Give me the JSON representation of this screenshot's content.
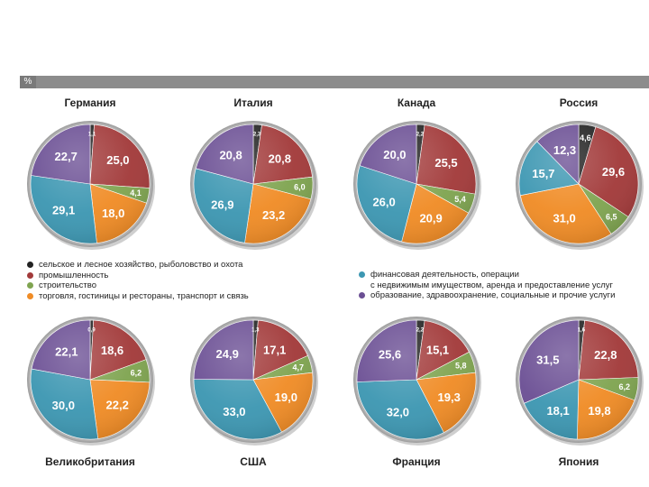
{
  "header": {
    "unit": "%"
  },
  "colors": {
    "agriculture": "#222222",
    "industry": "#a23a3a",
    "construction": "#7fa450",
    "trade": "#f08c26",
    "finance": "#3d97b2",
    "services": "#6b4f94"
  },
  "legend": {
    "left": [
      {
        "key": "agriculture",
        "label": "сельское и лесное хозяйство, рыболовство и охота"
      },
      {
        "key": "industry",
        "label": "промышленность"
      },
      {
        "key": "construction",
        "label": "строительство"
      },
      {
        "key": "trade",
        "label": "торговля, гостиницы и рестораны, транспорт и связь"
      }
    ],
    "right": [
      {
        "key": "finance",
        "label": "финансовая деятельность, операции\nс недвижимым имуществом, аренда и предоставление услуг"
      },
      {
        "key": "services",
        "label": "образование, здравоохранение, социальные и прочие услуги"
      }
    ]
  },
  "chart_data": [
    {
      "type": "pie",
      "title": "Германия",
      "categories": [
        "agriculture",
        "industry",
        "construction",
        "trade",
        "finance",
        "services"
      ],
      "values": [
        1.1,
        25.0,
        4.1,
        18.0,
        29.1,
        22.7
      ],
      "labels": [
        "1,1",
        "25,0",
        "4,1",
        "18,0",
        "29,1",
        "22,7"
      ]
    },
    {
      "type": "pie",
      "title": "Италия",
      "categories": [
        "agriculture",
        "industry",
        "construction",
        "trade",
        "finance",
        "services"
      ],
      "values": [
        2.3,
        20.8,
        6.0,
        23.2,
        26.9,
        20.8
      ],
      "labels": [
        "2,3",
        "20,8",
        "6,0",
        "23,2",
        "26,9",
        "20,8"
      ]
    },
    {
      "type": "pie",
      "title": "Канада",
      "categories": [
        "agriculture",
        "industry",
        "construction",
        "trade",
        "finance",
        "services"
      ],
      "values": [
        2.2,
        25.5,
        5.4,
        20.9,
        26.0,
        20.0
      ],
      "labels": [
        "2,2",
        "25,5",
        "5,4",
        "20,9",
        "26,0",
        "20,0"
      ]
    },
    {
      "type": "pie",
      "title": "Россия",
      "categories": [
        "agriculture",
        "industry",
        "construction",
        "trade",
        "finance",
        "services"
      ],
      "values": [
        4.6,
        29.6,
        6.5,
        31.0,
        15.7,
        12.3
      ],
      "labels": [
        "4,6",
        "29,6",
        "6,5",
        "31,0",
        "15,7",
        "12,3"
      ]
    },
    {
      "type": "pie",
      "title": "Великобритания",
      "categories": [
        "agriculture",
        "industry",
        "construction",
        "trade",
        "finance",
        "services"
      ],
      "values": [
        0.9,
        18.6,
        6.2,
        22.2,
        30.0,
        22.1
      ],
      "labels": [
        "0,9",
        "18,6",
        "6,2",
        "22,2",
        "30,0",
        "22,1"
      ]
    },
    {
      "type": "pie",
      "title": "США",
      "categories": [
        "agriculture",
        "industry",
        "construction",
        "trade",
        "finance",
        "services"
      ],
      "values": [
        1.3,
        17.1,
        4.7,
        19.0,
        33.0,
        24.9
      ],
      "labels": [
        "1,3",
        "17,1",
        "4,7",
        "19,0",
        "33,0",
        "24,9"
      ]
    },
    {
      "type": "pie",
      "title": "Франция",
      "categories": [
        "agriculture",
        "industry",
        "construction",
        "trade",
        "finance",
        "services"
      ],
      "values": [
        2.2,
        15.1,
        5.8,
        19.3,
        32.0,
        25.6
      ],
      "labels": [
        "2,2",
        "15,1",
        "5,8",
        "19,3",
        "32,0",
        "25,6"
      ]
    },
    {
      "type": "pie",
      "title": "Япония",
      "categories": [
        "agriculture",
        "industry",
        "construction",
        "trade",
        "finance",
        "services"
      ],
      "values": [
        1.6,
        22.8,
        6.2,
        19.8,
        18.1,
        31.5
      ],
      "labels": [
        "1,6",
        "22,8",
        "6,2",
        "19,8",
        "18,1",
        "31,5"
      ]
    }
  ]
}
